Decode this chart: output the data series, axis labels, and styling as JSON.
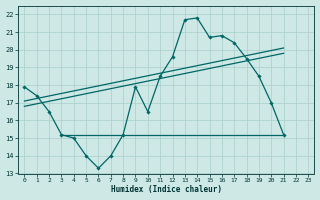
{
  "xlabel": "Humidex (Indice chaleur)",
  "ylabel": "",
  "background_color": "#cde8e5",
  "grid_color": "#aacfcc",
  "line_color": "#006666",
  "xlim": [
    -0.5,
    23.5
  ],
  "ylim": [
    13,
    22.5
  ],
  "yticks": [
    13,
    14,
    15,
    16,
    17,
    18,
    19,
    20,
    21,
    22
  ],
  "xticks": [
    0,
    1,
    2,
    3,
    4,
    5,
    6,
    7,
    8,
    9,
    10,
    11,
    12,
    13,
    14,
    15,
    16,
    17,
    18,
    19,
    20,
    21,
    22,
    23
  ],
  "series1_x": [
    0,
    1,
    2,
    3,
    4,
    5,
    6,
    7,
    8,
    9,
    10,
    11,
    12,
    13,
    14,
    15,
    16,
    17,
    18,
    19,
    20,
    21
  ],
  "series1_y": [
    17.9,
    17.4,
    16.5,
    15.2,
    15.0,
    14.0,
    13.3,
    14.0,
    15.2,
    17.9,
    16.5,
    18.5,
    19.6,
    21.7,
    21.8,
    20.7,
    20.8,
    20.4,
    19.5,
    18.5,
    17.0,
    15.2
  ],
  "series2_x": [
    0,
    21
  ],
  "series2_y": [
    16.8,
    19.8
  ],
  "series3_x": [
    3,
    21
  ],
  "series3_y": [
    15.2,
    15.2
  ],
  "series4_x": [
    0,
    21
  ],
  "series4_y": [
    17.1,
    20.1
  ]
}
